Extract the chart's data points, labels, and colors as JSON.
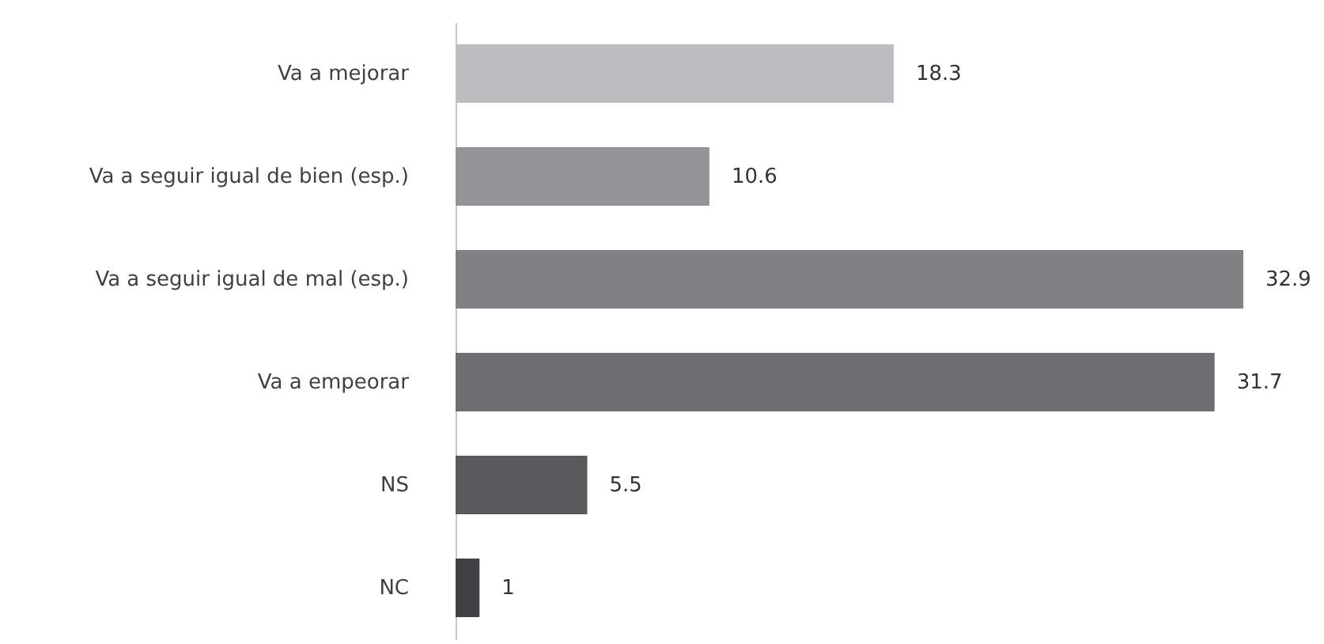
{
  "chart_data": {
    "type": "bar",
    "orientation": "horizontal",
    "categories": [
      "Va a mejorar",
      "Va a seguir igual de bien (esp.)",
      "Va a seguir igual de mal (esp.)",
      "Va a empeorar",
      "NS",
      "NC"
    ],
    "values": [
      18.3,
      10.6,
      32.9,
      31.7,
      5.5,
      1
    ],
    "colors": [
      "#bcbdc0",
      "#939598",
      "#808285",
      "#6d6e71",
      "#58595b",
      "#414042"
    ],
    "data_labels": true
  }
}
